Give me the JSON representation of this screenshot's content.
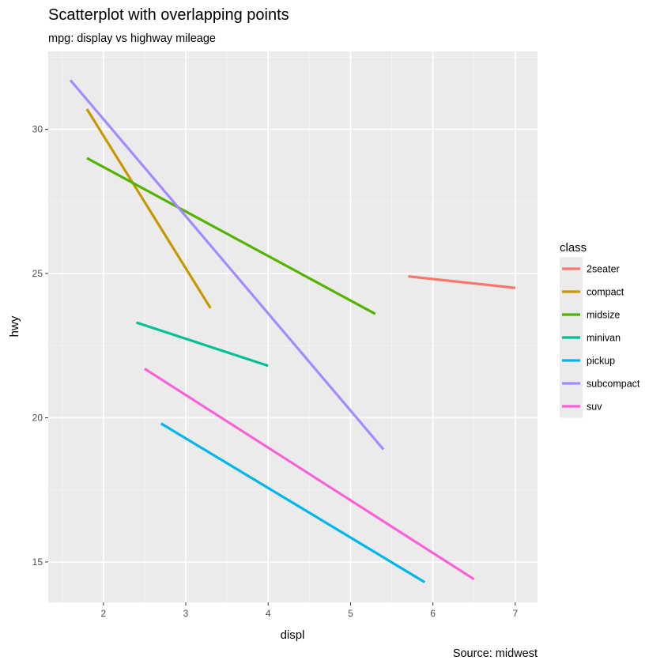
{
  "chart_data": {
    "type": "line",
    "title": "Scatterplot with overlapping points",
    "subtitle": "mpg: display vs highway mileage",
    "caption": "Source: midwest",
    "xlabel": "displ",
    "ylabel": "hwy",
    "xlim": [
      1.33,
      7.27
    ],
    "ylim": [
      13.6,
      32.7
    ],
    "x_ticks": [
      2,
      3,
      4,
      5,
      6,
      7
    ],
    "y_ticks": [
      15,
      20,
      25,
      30
    ],
    "grid": true,
    "legend": {
      "title": "class",
      "position": "right"
    },
    "series": [
      {
        "name": "2seater",
        "color": "#F8766D",
        "x": [
          5.7,
          7.0
        ],
        "y": [
          24.9,
          24.5
        ]
      },
      {
        "name": "compact",
        "color": "#C49A00",
        "x": [
          1.8,
          3.3
        ],
        "y": [
          30.7,
          23.8
        ]
      },
      {
        "name": "midsize",
        "color": "#53B400",
        "x": [
          1.8,
          5.3
        ],
        "y": [
          29.0,
          23.6
        ]
      },
      {
        "name": "minivan",
        "color": "#00C094",
        "x": [
          2.4,
          4.0
        ],
        "y": [
          23.3,
          21.8
        ]
      },
      {
        "name": "pickup",
        "color": "#00B6EB",
        "x": [
          2.7,
          5.9
        ],
        "y": [
          19.8,
          14.3
        ]
      },
      {
        "name": "subcompact",
        "color": "#A58AFF",
        "x": [
          1.6,
          5.4
        ],
        "y": [
          31.7,
          18.9
        ]
      },
      {
        "name": "suv",
        "color": "#FB61D7",
        "x": [
          2.5,
          6.5
        ],
        "y": [
          21.7,
          14.4
        ]
      }
    ]
  }
}
